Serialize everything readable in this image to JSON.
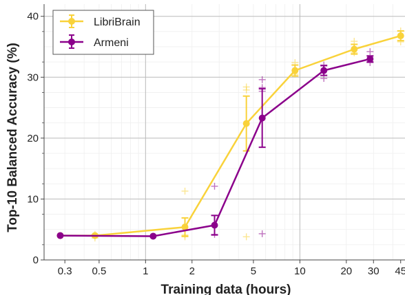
{
  "chart_data": {
    "type": "line",
    "title": "",
    "xlabel": "Training data (hours)",
    "ylabel": "Top-10 Balanced Accuracy (%)",
    "xscale": "log",
    "xlim": [
      0.22,
      48
    ],
    "ylim": [
      0,
      42
    ],
    "xticks": [
      0.3,
      0.5,
      1,
      2,
      5,
      10,
      20,
      30,
      45
    ],
    "xtick_labels": [
      "0.3",
      "0.5",
      "1",
      "2",
      "5",
      "10",
      "20",
      "30",
      "45"
    ],
    "yticks": [
      0,
      10,
      20,
      30,
      40
    ],
    "ytick_labels": [
      "0",
      "10",
      "20",
      "30",
      "40"
    ],
    "grid": true,
    "legend_position": "top-left",
    "series": [
      {
        "name": "LibriBrain",
        "color": "#F9D23A",
        "marker": "circle",
        "x": [
          0.28,
          0.47,
          1.8,
          4.5,
          9.3,
          22.5,
          45
        ],
        "y": [
          4.0,
          4.0,
          5.4,
          22.4,
          31.1,
          34.6,
          36.8
        ],
        "err": [
          0.3,
          0.3,
          1.5,
          4.5,
          0.9,
          0.8,
          0.8
        ],
        "runs": [
          {
            "x": 0.47,
            "y": 3.6
          },
          {
            "x": 0.47,
            "y": 4.2
          },
          {
            "x": 1.8,
            "y": 11.3
          },
          {
            "x": 1.8,
            "y": 4.1
          },
          {
            "x": 1.8,
            "y": 3.8
          },
          {
            "x": 4.5,
            "y": 28.4
          },
          {
            "x": 4.5,
            "y": 27.9
          },
          {
            "x": 4.5,
            "y": 3.8
          },
          {
            "x": 9.3,
            "y": 32.4
          },
          {
            "x": 9.3,
            "y": 30.5
          },
          {
            "x": 22.5,
            "y": 35.9
          },
          {
            "x": 22.5,
            "y": 34.0
          },
          {
            "x": 45,
            "y": 37.6
          },
          {
            "x": 45,
            "y": 35.8
          }
        ]
      },
      {
        "name": "Armeni",
        "color": "#8B008B",
        "marker": "circle",
        "x": [
          0.28,
          1.12,
          2.8,
          5.7,
          14.3,
          28.5
        ],
        "y": [
          4.0,
          3.9,
          5.7,
          23.3,
          31.1,
          33.0
        ],
        "err": [
          0.2,
          0.2,
          1.6,
          4.8,
          0.8,
          0.5
        ],
        "runs": [
          {
            "x": 2.8,
            "y": 12.1
          },
          {
            "x": 2.8,
            "y": 4.2
          },
          {
            "x": 5.7,
            "y": 29.6
          },
          {
            "x": 5.7,
            "y": 28.3
          },
          {
            "x": 5.7,
            "y": 27.7
          },
          {
            "x": 5.7,
            "y": 4.3
          },
          {
            "x": 14.3,
            "y": 32.0
          },
          {
            "x": 14.3,
            "y": 29.8
          },
          {
            "x": 28.5,
            "y": 34.2
          },
          {
            "x": 28.5,
            "y": 32.4
          }
        ]
      }
    ]
  }
}
